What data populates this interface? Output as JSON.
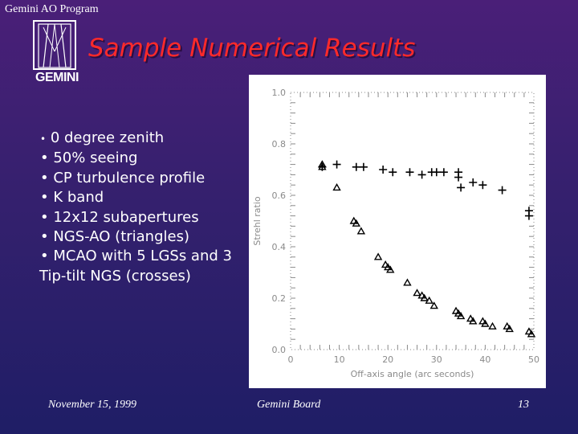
{
  "header": {
    "program": "Gemini AO Program",
    "logo_word": "GEMINI",
    "title": "Sample Numerical Results"
  },
  "bullets": [
    "0 degree zenith",
    "50% seeing",
    "CP turbulence profile",
    "K band",
    "12x12 subapertures",
    "NGS-AO (triangles)",
    "MCAO with 5 LGSs and 3",
    "Tip-tilt NGS (crosses)"
  ],
  "chart_data": {
    "type": "scatter",
    "xlabel": "Off-axis angle (arc seconds)",
    "ylabel": "Strehl ratio",
    "xlim": [
      0,
      50
    ],
    "ylim": [
      0,
      1
    ],
    "xticks": [
      "0",
      "10",
      "20",
      "30",
      "40",
      "50"
    ],
    "yticks": [
      "0.0",
      "0.2",
      "0.4",
      "0.6",
      "0.8",
      "1.0"
    ],
    "grid": false,
    "series": [
      {
        "name": "NGS-AO (triangles)",
        "marker": "triangle",
        "points": [
          [
            6.5,
            0.72
          ],
          [
            6.5,
            0.71
          ],
          [
            9.5,
            0.63
          ],
          [
            13,
            0.5
          ],
          [
            13.5,
            0.49
          ],
          [
            14.5,
            0.46
          ],
          [
            18,
            0.36
          ],
          [
            19.5,
            0.33
          ],
          [
            20,
            0.32
          ],
          [
            20.5,
            0.31
          ],
          [
            24,
            0.26
          ],
          [
            26,
            0.22
          ],
          [
            27,
            0.21
          ],
          [
            27.5,
            0.2
          ],
          [
            28.5,
            0.19
          ],
          [
            29.5,
            0.17
          ],
          [
            34,
            0.15
          ],
          [
            34.5,
            0.14
          ],
          [
            35,
            0.13
          ],
          [
            37,
            0.12
          ],
          [
            37.5,
            0.11
          ],
          [
            39.5,
            0.11
          ],
          [
            40,
            0.1
          ],
          [
            41.5,
            0.09
          ],
          [
            44.5,
            0.09
          ],
          [
            45,
            0.08
          ],
          [
            49,
            0.07
          ],
          [
            49.5,
            0.06
          ]
        ]
      },
      {
        "name": "MCAO with 5 LGSs and 3 Tip-tilt NGS (crosses)",
        "marker": "cross",
        "points": [
          [
            6.5,
            0.71
          ],
          [
            9.5,
            0.72
          ],
          [
            13.5,
            0.71
          ],
          [
            15,
            0.71
          ],
          [
            19,
            0.7
          ],
          [
            21,
            0.69
          ],
          [
            24.5,
            0.69
          ],
          [
            27,
            0.68
          ],
          [
            29,
            0.69
          ],
          [
            30,
            0.69
          ],
          [
            31.5,
            0.69
          ],
          [
            34.5,
            0.69
          ],
          [
            34.5,
            0.67
          ],
          [
            35,
            0.63
          ],
          [
            37.5,
            0.65
          ],
          [
            39.5,
            0.64
          ],
          [
            43.5,
            0.62
          ],
          [
            49,
            0.54
          ],
          [
            49,
            0.52
          ]
        ]
      }
    ]
  },
  "footer": {
    "date": "November 15, 1999",
    "venue": "Gemini Board",
    "page": "13"
  }
}
